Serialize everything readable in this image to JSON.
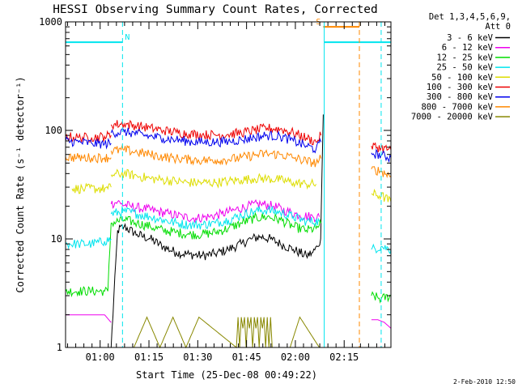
{
  "chart_data": {
    "type": "line",
    "title": "HESSI Observing Summary Count Rates, Corrected",
    "ylabel": "Corrected Count Rate (s⁻¹ detector⁻¹)",
    "xlabel": "Start Time (25-Dec-08 00:49:22)",
    "y_scale": "log",
    "ylim": [
      1,
      1000
    ],
    "y_ticks": [
      1,
      10,
      100,
      1000
    ],
    "y_tick_labels": [
      "1",
      "10",
      "100",
      "1000"
    ],
    "xlim_minutes": [
      0,
      42
    ],
    "x_ticks": [
      {
        "minute": 10.63,
        "label": "01:00"
      },
      {
        "minute": 25.63,
        "label": "01:15"
      },
      {
        "minute": 40.63,
        "label": "01:30"
      },
      {
        "minute": 55.63,
        "label": "01:45"
      },
      {
        "minute": 70.63,
        "label": "02:00"
      },
      {
        "minute": 85.63,
        "label": "02:15"
      }
    ],
    "x_range_minutes": [
      0,
      100
    ],
    "legend": {
      "header": [
        "Det 1,3,4,5,6,9,",
        "Att 0"
      ],
      "placement": "right"
    },
    "flags": [
      {
        "label": "N",
        "color": "#00e5ee",
        "start_minute": 0,
        "end_minute": 17.5,
        "level": 650
      },
      {
        "label": "S",
        "color": "#ff8800",
        "start_minute": 79.2,
        "end_minute": 90.3,
        "level": 900
      },
      {
        "label": "",
        "color": "#00e5ee",
        "start_minute": 79.5,
        "end_minute": 100,
        "level": 650
      }
    ],
    "boundaries": [
      {
        "minute": 17.5,
        "color": "#00e5ee",
        "style": "dashed"
      },
      {
        "minute": 79.5,
        "color": "#00e5ee",
        "style": "solid"
      },
      {
        "minute": 90.3,
        "color": "#ff8800",
        "style": "dashed"
      },
      {
        "minute": 97.0,
        "color": "#00e5ee",
        "style": "dashed"
      }
    ],
    "series": [
      {
        "name": "3 - 6 keV",
        "color": "#000000",
        "segments": [
          {
            "x": [
              0,
              2,
              4,
              6,
              8,
              10,
              12,
              14,
              16,
              18,
              22,
              26,
              30,
              34,
              38,
              42,
              46,
              50,
              54,
              57,
              60,
              63,
              66,
              70,
              74,
              76,
              77.5,
              78.4
            ],
            "y": [
              1,
              1,
              1,
              1,
              1,
              1,
              1,
              1,
              12,
              13,
              11,
              10,
              8.5,
              7.5,
              7.2,
              7.0,
              7.3,
              8.0,
              9.0,
              10.0,
              10.5,
              10.0,
              9.0,
              8.0,
              7.0,
              7.5,
              8.5,
              10
            ]
          },
          {
            "x": [
              78.4,
              78.8,
              79.2
            ],
            "y": [
              10,
              40,
              140
            ]
          },
          {
            "x": [
              94,
              100
            ],
            "y": [
              1,
              1
            ]
          }
        ]
      },
      {
        "name": "6 - 12 keV",
        "color": "#ee00ee",
        "segments": [
          {
            "x": [
              0,
              4,
              8,
              10,
              12,
              14
            ],
            "y": [
              2,
              2,
              2,
              2,
              2,
              1.7
            ]
          },
          {
            "x": [
              14,
              16,
              17,
              20,
              24,
              28,
              32,
              36,
              40,
              44,
              48,
              52,
              56,
              60,
              64,
              68,
              72,
              76,
              78
            ],
            "y": [
              21,
              22,
              21,
              20,
              19,
              18,
              17,
              16,
              15.5,
              16,
              17,
              18.5,
              20,
              21,
              20,
              18,
              16.5,
              16,
              16
            ]
          },
          {
            "x": [
              94,
              96,
              98,
              100
            ],
            "y": [
              1.8,
              1.8,
              1.7,
              1.5
            ]
          }
        ]
      },
      {
        "name": "12 - 25 keV",
        "color": "#00dd00",
        "segments": [
          {
            "x": [
              0,
              4,
              8,
              12,
              13
            ],
            "y": [
              3.3,
              3.3,
              3.3,
              3.3,
              3.3
            ]
          },
          {
            "x": [
              13,
              14
            ],
            "y": [
              3.3,
              14
            ]
          },
          {
            "x": [
              14,
              18,
              22,
              26,
              30,
              34,
              38,
              42,
              46,
              50,
              54,
              58,
              62,
              66,
              70,
              74,
              77,
              78.5
            ],
            "y": [
              14,
              15,
              14,
              13,
              12,
              11.5,
              11,
              11,
              11.5,
              12.5,
              14,
              15.5,
              16,
              15,
              13,
              12,
              12.5,
              14
            ]
          },
          {
            "x": [
              94,
              97,
              100
            ],
            "y": [
              3.0,
              2.8,
              3.0
            ]
          }
        ]
      },
      {
        "name": "25 - 50 keV",
        "color": "#00e5ee",
        "segments": [
          {
            "x": [
              0,
              4,
              8,
              12,
              14
            ],
            "y": [
              9,
              9,
              9,
              9.5,
              10
            ]
          },
          {
            "x": [
              14,
              18,
              22,
              26,
              30,
              34,
              38,
              42,
              46,
              50,
              54,
              58,
              62,
              66,
              70,
              74,
              78
            ],
            "y": [
              17,
              18,
              17,
              16,
              15,
              14,
              13.5,
              13.5,
              14,
              15,
              16.5,
              18,
              18.5,
              17.5,
              16,
              14.5,
              14.5
            ]
          },
          {
            "x": [
              94,
              97,
              100
            ],
            "y": [
              8,
              8.5,
              8
            ]
          }
        ]
      },
      {
        "name": "50 - 100 keV",
        "color": "#dddd00",
        "segments": [
          {
            "x": [
              2,
              6,
              10,
              13,
              14
            ],
            "y": [
              29,
              29,
              29,
              29,
              30
            ]
          },
          {
            "x": [
              14,
              18,
              22,
              26,
              30,
              34,
              38,
              42,
              46,
              50,
              54,
              58,
              62,
              66,
              70,
              74,
              77
            ],
            "y": [
              39,
              40,
              38,
              36,
              35,
              34,
              33,
              33,
              33,
              34,
              35,
              36,
              36,
              35,
              33,
              32,
              32
            ]
          },
          {
            "x": [
              94,
              97,
              100
            ],
            "y": [
              26,
              25,
              22
            ]
          }
        ]
      },
      {
        "name": "100 - 300 keV",
        "color": "#ee0000",
        "segments": [
          {
            "x": [
              0,
              4,
              8,
              12,
              14
            ],
            "y": [
              88,
              86,
              86,
              88,
              90
            ]
          },
          {
            "x": [
              14,
              18,
              22,
              26,
              30,
              34,
              38,
              42,
              46,
              50,
              54,
              58,
              62,
              66,
              70,
              74,
              77,
              78.5
            ],
            "y": [
              113,
              115,
              110,
              105,
              100,
              96,
              93,
              91,
              91,
              92,
              95,
              100,
              105,
              103,
              95,
              85,
              78,
              90
            ]
          },
          {
            "x": [
              94,
              97,
              100
            ],
            "y": [
              72,
              69,
              66
            ]
          }
        ]
      },
      {
        "name": "300 - 800 keV",
        "color": "#0000ee",
        "segments": [
          {
            "x": [
              0,
              4,
              8,
              12,
              14
            ],
            "y": [
              80,
              78,
              76,
              75,
              76
            ]
          },
          {
            "x": [
              14,
              18,
              22,
              26,
              30,
              34,
              38,
              42,
              46,
              50,
              54,
              58,
              62,
              66,
              70,
              74,
              77,
              78.5
            ],
            "y": [
              95,
              97,
              93,
              88,
              85,
              82,
              79,
              78,
              78,
              79,
              82,
              86,
              90,
              88,
              80,
              72,
              67,
              78
            ]
          },
          {
            "x": [
              94,
              97,
              100
            ],
            "y": [
              62,
              59,
              56
            ]
          }
        ]
      },
      {
        "name": "800 - 7000 keV",
        "color": "#ff8800",
        "segments": [
          {
            "x": [
              0,
              4,
              8,
              12,
              14
            ],
            "y": [
              57,
              56,
              56,
              56,
              56
            ]
          },
          {
            "x": [
              14,
              18,
              22,
              26,
              30,
              34,
              38,
              42,
              46,
              50,
              54,
              58,
              62,
              66,
              70,
              74,
              77,
              78.5
            ],
            "y": [
              65,
              66,
              63,
              60,
              57,
              55,
              54,
              53,
              53,
              54,
              56,
              59,
              61,
              60,
              56,
              52,
              50,
              55
            ]
          },
          {
            "x": [
              94,
              97,
              100
            ],
            "y": [
              44,
              42,
              38
            ]
          }
        ]
      },
      {
        "name": "7000 - 20000 keV",
        "color": "#888800",
        "segments": [
          {
            "x": [
              0,
              14,
              21,
              25,
              29,
              33,
              37,
              41,
              52.5,
              53,
              53.5,
              54,
              54.5,
              55,
              55.5,
              56,
              56.5,
              57,
              57.5,
              58,
              58.5,
              59,
              59.5,
              60,
              60.5,
              61,
              61.5,
              62,
              62.5,
              63,
              63.5,
              64,
              69,
              72,
              78
            ],
            "y": [
              1,
              1,
              1,
              1.9,
              1,
              1.9,
              1,
              1.9,
              1,
              1.9,
              1,
              1.9,
              1.5,
              1.9,
              1,
              1.9,
              1.5,
              1.9,
              1,
              1.9,
              1.5,
              1.9,
              1,
              1.9,
              1.5,
              1.9,
              1,
              1.9,
              1,
              1.9,
              1,
              1,
              1,
              1.9,
              1
            ]
          },
          {
            "x": [
              94,
              100
            ],
            "y": [
              1,
              1
            ]
          }
        ]
      }
    ]
  },
  "footer": {
    "timestamp": "2-Feb-2010 12:50"
  }
}
